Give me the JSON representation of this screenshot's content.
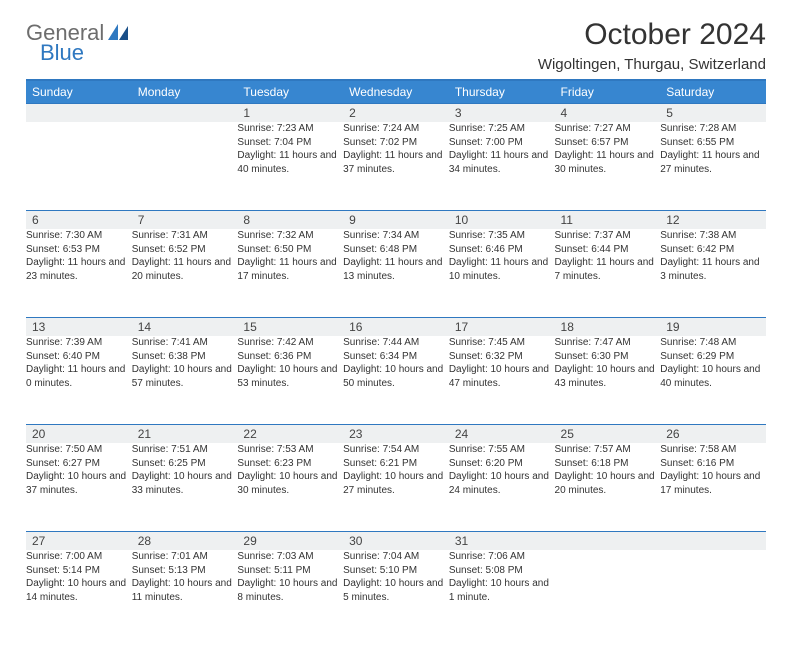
{
  "logo": {
    "line1": "General",
    "line2": "Blue"
  },
  "title": "October 2024",
  "location": "Wigoltingen, Thurgau, Switzerland",
  "colors": {
    "header_bg": "#3786d0",
    "header_border": "#2f78c0",
    "daynum_bg": "#eef0f1",
    "text": "#333333",
    "logo_gray": "#6d6d6d",
    "logo_blue": "#2f78c0"
  },
  "day_headers": [
    "Sunday",
    "Monday",
    "Tuesday",
    "Wednesday",
    "Thursday",
    "Friday",
    "Saturday"
  ],
  "weeks": [
    [
      {
        "num": "",
        "sunrise": "",
        "sunset": "",
        "daylight": ""
      },
      {
        "num": "",
        "sunrise": "",
        "sunset": "",
        "daylight": ""
      },
      {
        "num": "1",
        "sunrise": "Sunrise: 7:23 AM",
        "sunset": "Sunset: 7:04 PM",
        "daylight": "Daylight: 11 hours and 40 minutes."
      },
      {
        "num": "2",
        "sunrise": "Sunrise: 7:24 AM",
        "sunset": "Sunset: 7:02 PM",
        "daylight": "Daylight: 11 hours and 37 minutes."
      },
      {
        "num": "3",
        "sunrise": "Sunrise: 7:25 AM",
        "sunset": "Sunset: 7:00 PM",
        "daylight": "Daylight: 11 hours and 34 minutes."
      },
      {
        "num": "4",
        "sunrise": "Sunrise: 7:27 AM",
        "sunset": "Sunset: 6:57 PM",
        "daylight": "Daylight: 11 hours and 30 minutes."
      },
      {
        "num": "5",
        "sunrise": "Sunrise: 7:28 AM",
        "sunset": "Sunset: 6:55 PM",
        "daylight": "Daylight: 11 hours and 27 minutes."
      }
    ],
    [
      {
        "num": "6",
        "sunrise": "Sunrise: 7:30 AM",
        "sunset": "Sunset: 6:53 PM",
        "daylight": "Daylight: 11 hours and 23 minutes."
      },
      {
        "num": "7",
        "sunrise": "Sunrise: 7:31 AM",
        "sunset": "Sunset: 6:52 PM",
        "daylight": "Daylight: 11 hours and 20 minutes."
      },
      {
        "num": "8",
        "sunrise": "Sunrise: 7:32 AM",
        "sunset": "Sunset: 6:50 PM",
        "daylight": "Daylight: 11 hours and 17 minutes."
      },
      {
        "num": "9",
        "sunrise": "Sunrise: 7:34 AM",
        "sunset": "Sunset: 6:48 PM",
        "daylight": "Daylight: 11 hours and 13 minutes."
      },
      {
        "num": "10",
        "sunrise": "Sunrise: 7:35 AM",
        "sunset": "Sunset: 6:46 PM",
        "daylight": "Daylight: 11 hours and 10 minutes."
      },
      {
        "num": "11",
        "sunrise": "Sunrise: 7:37 AM",
        "sunset": "Sunset: 6:44 PM",
        "daylight": "Daylight: 11 hours and 7 minutes."
      },
      {
        "num": "12",
        "sunrise": "Sunrise: 7:38 AM",
        "sunset": "Sunset: 6:42 PM",
        "daylight": "Daylight: 11 hours and 3 minutes."
      }
    ],
    [
      {
        "num": "13",
        "sunrise": "Sunrise: 7:39 AM",
        "sunset": "Sunset: 6:40 PM",
        "daylight": "Daylight: 11 hours and 0 minutes."
      },
      {
        "num": "14",
        "sunrise": "Sunrise: 7:41 AM",
        "sunset": "Sunset: 6:38 PM",
        "daylight": "Daylight: 10 hours and 57 minutes."
      },
      {
        "num": "15",
        "sunrise": "Sunrise: 7:42 AM",
        "sunset": "Sunset: 6:36 PM",
        "daylight": "Daylight: 10 hours and 53 minutes."
      },
      {
        "num": "16",
        "sunrise": "Sunrise: 7:44 AM",
        "sunset": "Sunset: 6:34 PM",
        "daylight": "Daylight: 10 hours and 50 minutes."
      },
      {
        "num": "17",
        "sunrise": "Sunrise: 7:45 AM",
        "sunset": "Sunset: 6:32 PM",
        "daylight": "Daylight: 10 hours and 47 minutes."
      },
      {
        "num": "18",
        "sunrise": "Sunrise: 7:47 AM",
        "sunset": "Sunset: 6:30 PM",
        "daylight": "Daylight: 10 hours and 43 minutes."
      },
      {
        "num": "19",
        "sunrise": "Sunrise: 7:48 AM",
        "sunset": "Sunset: 6:29 PM",
        "daylight": "Daylight: 10 hours and 40 minutes."
      }
    ],
    [
      {
        "num": "20",
        "sunrise": "Sunrise: 7:50 AM",
        "sunset": "Sunset: 6:27 PM",
        "daylight": "Daylight: 10 hours and 37 minutes."
      },
      {
        "num": "21",
        "sunrise": "Sunrise: 7:51 AM",
        "sunset": "Sunset: 6:25 PM",
        "daylight": "Daylight: 10 hours and 33 minutes."
      },
      {
        "num": "22",
        "sunrise": "Sunrise: 7:53 AM",
        "sunset": "Sunset: 6:23 PM",
        "daylight": "Daylight: 10 hours and 30 minutes."
      },
      {
        "num": "23",
        "sunrise": "Sunrise: 7:54 AM",
        "sunset": "Sunset: 6:21 PM",
        "daylight": "Daylight: 10 hours and 27 minutes."
      },
      {
        "num": "24",
        "sunrise": "Sunrise: 7:55 AM",
        "sunset": "Sunset: 6:20 PM",
        "daylight": "Daylight: 10 hours and 24 minutes."
      },
      {
        "num": "25",
        "sunrise": "Sunrise: 7:57 AM",
        "sunset": "Sunset: 6:18 PM",
        "daylight": "Daylight: 10 hours and 20 minutes."
      },
      {
        "num": "26",
        "sunrise": "Sunrise: 7:58 AM",
        "sunset": "Sunset: 6:16 PM",
        "daylight": "Daylight: 10 hours and 17 minutes."
      }
    ],
    [
      {
        "num": "27",
        "sunrise": "Sunrise: 7:00 AM",
        "sunset": "Sunset: 5:14 PM",
        "daylight": "Daylight: 10 hours and 14 minutes."
      },
      {
        "num": "28",
        "sunrise": "Sunrise: 7:01 AM",
        "sunset": "Sunset: 5:13 PM",
        "daylight": "Daylight: 10 hours and 11 minutes."
      },
      {
        "num": "29",
        "sunrise": "Sunrise: 7:03 AM",
        "sunset": "Sunset: 5:11 PM",
        "daylight": "Daylight: 10 hours and 8 minutes."
      },
      {
        "num": "30",
        "sunrise": "Sunrise: 7:04 AM",
        "sunset": "Sunset: 5:10 PM",
        "daylight": "Daylight: 10 hours and 5 minutes."
      },
      {
        "num": "31",
        "sunrise": "Sunrise: 7:06 AM",
        "sunset": "Sunset: 5:08 PM",
        "daylight": "Daylight: 10 hours and 1 minute."
      },
      {
        "num": "",
        "sunrise": "",
        "sunset": "",
        "daylight": ""
      },
      {
        "num": "",
        "sunrise": "",
        "sunset": "",
        "daylight": ""
      }
    ]
  ]
}
